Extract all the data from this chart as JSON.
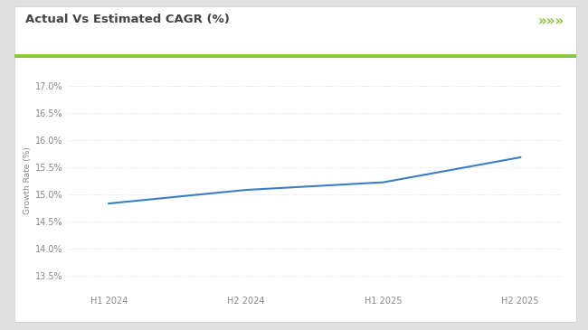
{
  "title": "Actual Vs Estimated CAGR (%)",
  "title_fontsize": 9.5,
  "x_labels": [
    "H1 2024",
    "H2 2024",
    "H1 2025",
    "H2 2025"
  ],
  "x_values": [
    0,
    1,
    2,
    3
  ],
  "y_values": [
    14.83,
    15.08,
    15.22,
    15.68
  ],
  "ylabel": "Growth Rate (%)",
  "ylabel_fontsize": 6.5,
  "yticks": [
    13.5,
    14.0,
    14.5,
    15.0,
    15.5,
    16.0,
    16.5,
    17.0
  ],
  "ylim": [
    13.2,
    17.3
  ],
  "xlim": [
    -0.3,
    3.3
  ],
  "line_color": "#3a7ec6",
  "line_width": 1.5,
  "grid_color": "#d8d8d8",
  "grid_linestyle": "dotted",
  "background_color": "#ffffff",
  "outer_background": "#e0e0e0",
  "title_bar_color": "#8dc63f",
  "chevron_color": "#8dc63f",
  "tick_label_fontsize": 7,
  "tick_color": "#888888",
  "title_color": "#444444"
}
